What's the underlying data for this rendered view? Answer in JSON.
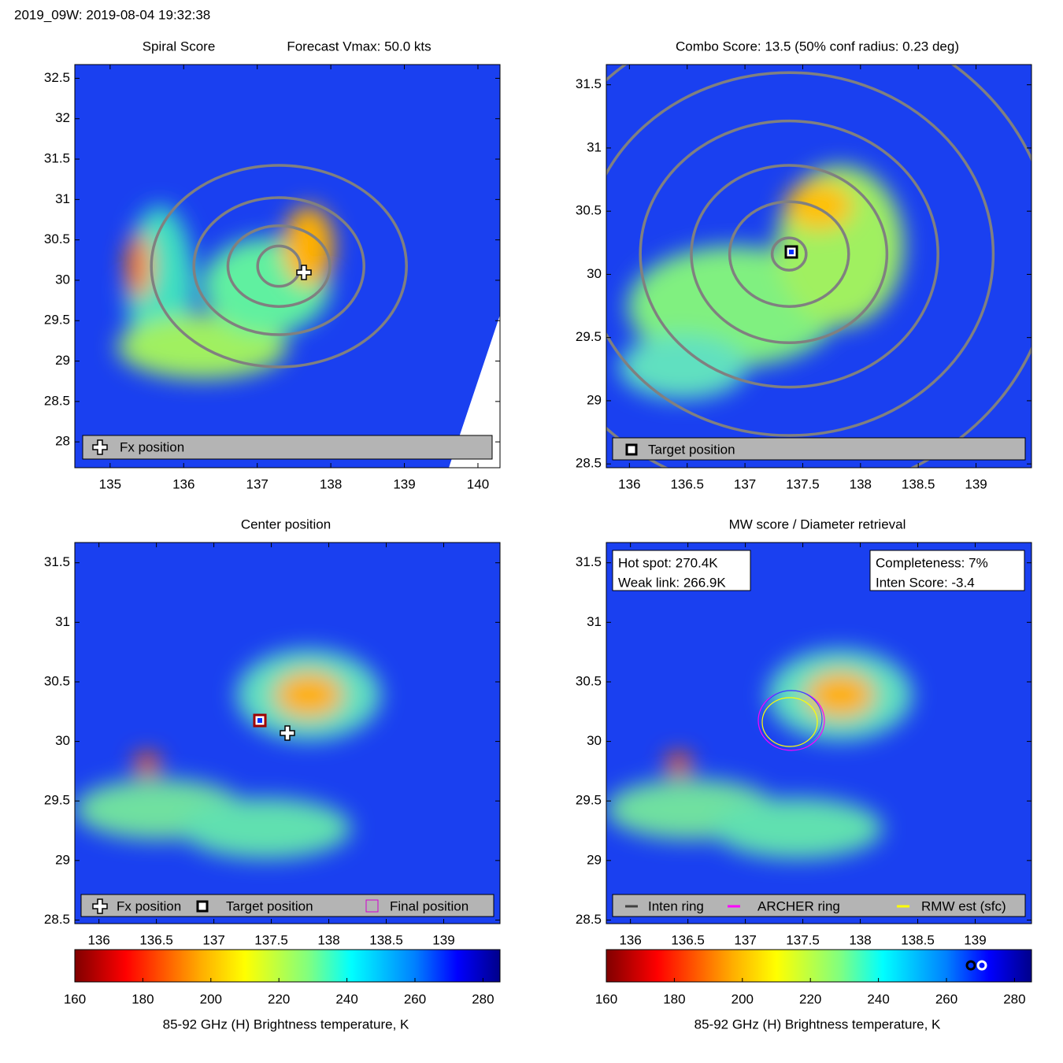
{
  "header": "2019_09W: 2019-08-04 19:32:38",
  "chart_data": [
    {
      "type": "heatmap",
      "title": "Spiral Score",
      "subtitle": "Forecast Vmax: 50.0 kts",
      "xlim": [
        134.52,
        140.3
      ],
      "ylim": [
        27.68,
        32.67
      ],
      "xticks": [
        135,
        136,
        137,
        138,
        139,
        140
      ],
      "yticks": [
        28,
        28.5,
        29,
        29.5,
        30,
        30.5,
        31,
        31.5,
        32,
        32.5
      ],
      "legend": [
        "Fx position"
      ]
    },
    {
      "type": "heatmap",
      "title": "Combo Score: 13.5  (50% conf radius: 0.23 deg)",
      "xlim": [
        135.8,
        139.48
      ],
      "ylim": [
        28.47,
        31.66
      ],
      "xticks": [
        136,
        136.5,
        137,
        137.5,
        138,
        138.5,
        139
      ],
      "yticks": [
        28.5,
        29,
        29.5,
        30,
        30.5,
        31,
        31.5
      ],
      "legend": [
        "Target position"
      ]
    },
    {
      "type": "heatmap",
      "title": "Center position",
      "xlim": [
        135.79,
        139.49
      ],
      "ylim": [
        28.47,
        31.67
      ],
      "xticks": [
        136,
        136.5,
        137,
        137.5,
        138,
        138.5,
        139
      ],
      "yticks": [
        28.5,
        29,
        29.5,
        30,
        30.5,
        31,
        31.5
      ],
      "legend": [
        "Fx position",
        "Target position",
        "Final position"
      ],
      "colorbar": {
        "label": "85-92 GHz (H) Brightness temperature, K",
        "xlim": [
          160,
          285
        ],
        "xticks": [
          160,
          180,
          200,
          220,
          240,
          260,
          280
        ]
      }
    },
    {
      "type": "heatmap",
      "title": "MW score / Diameter retrieval",
      "xlim": [
        135.79,
        139.49
      ],
      "ylim": [
        28.47,
        31.67
      ],
      "xticks": [
        136,
        136.5,
        137,
        137.5,
        138,
        138.5,
        139
      ],
      "yticks": [
        28.5,
        29,
        29.5,
        30,
        30.5,
        31,
        31.5
      ],
      "annotations": [
        "Hot spot: 270.4K",
        "Weak link: 266.9K",
        "Completeness: 7%",
        "Inten Score: -3.4"
      ],
      "legend": [
        "Inten ring",
        "ARCHER ring",
        "RMW est (sfc)"
      ],
      "colorbar": {
        "label": "85-92 GHz (H) Brightness temperature, K",
        "xlim": [
          160,
          285
        ],
        "xticks": [
          160,
          180,
          200,
          220,
          240,
          260,
          280
        ]
      }
    }
  ]
}
